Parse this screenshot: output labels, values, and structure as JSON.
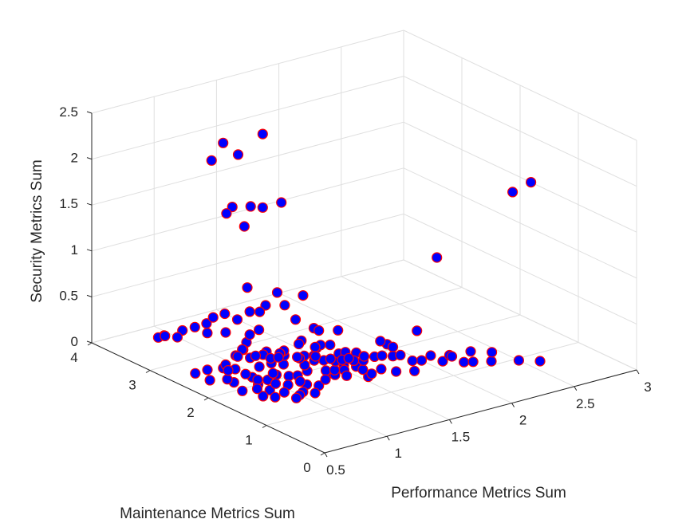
{
  "chart_data": {
    "type": "scatter",
    "xlabel": "Performance Metrics Sum",
    "ylabel": "Maintenance Metrics Sum",
    "zlabel": "Security Metrics Sum",
    "xlim": [
      0.5,
      3
    ],
    "ylim": [
      0,
      4
    ],
    "zlim": [
      0,
      2.5
    ],
    "xticks": [
      "0.5",
      "1",
      "1.5",
      "2",
      "2.5",
      "3"
    ],
    "yticks": [
      "0",
      "1",
      "2",
      "3",
      "4"
    ],
    "zticks": [
      "0",
      "0.5",
      "1",
      "1.5",
      "2",
      "2.5"
    ],
    "marker_fill": "#0000ff",
    "marker_edge": "#ff0000",
    "grid": true,
    "points": [
      [
        1.3,
        3.2,
        2.0
      ],
      [
        1.25,
        3.35,
        2.1
      ],
      [
        1.45,
        3.1,
        2.2
      ],
      [
        0.9,
        2.8,
        2.2
      ],
      [
        1.3,
        3.3,
        1.4
      ],
      [
        1.4,
        3.2,
        1.4
      ],
      [
        1.45,
        3.1,
        1.4
      ],
      [
        1.6,
        3.1,
        1.4
      ],
      [
        1.3,
        3.4,
        1.3
      ],
      [
        1.35,
        3.2,
        1.2
      ],
      [
        2.9,
        1.6,
        1.6
      ],
      [
        2.8,
        1.7,
        1.5
      ],
      [
        1.1,
        2.1,
        0.9
      ],
      [
        1.0,
        2.4,
        0.9
      ],
      [
        2.1,
        1.5,
        1.1
      ],
      [
        1.7,
        1.5,
        0.3
      ],
      [
        1.4,
        2.3,
        0.7
      ],
      [
        1.3,
        2.4,
        0.6
      ],
      [
        1.1,
        2.3,
        0.7
      ],
      [
        1.1,
        2.4,
        0.6
      ],
      [
        1.2,
        2.0,
        0.6
      ],
      [
        1.3,
        1.9,
        0.5
      ],
      [
        1.2,
        1.9,
        0.4
      ],
      [
        1.0,
        2.2,
        0.5
      ],
      [
        0.9,
        2.2,
        0.4
      ],
      [
        1.2,
        1.6,
        0.6
      ],
      [
        1.4,
        1.7,
        0.5
      ],
      [
        1.8,
        1.2,
        0.5
      ],
      [
        1.6,
        1.4,
        0.4
      ],
      [
        1.7,
        1.4,
        0.3
      ],
      [
        1.7,
        1.4,
        0.2
      ],
      [
        1.3,
        1.9,
        0.2
      ],
      [
        1.5,
        1.6,
        0.25
      ],
      [
        1.4,
        1.6,
        0.15
      ],
      [
        1.6,
        1.5,
        0.2
      ],
      [
        1.1,
        3.0,
        0.4
      ],
      [
        1.0,
        3.1,
        0.3
      ],
      [
        1.1,
        3.2,
        0.3
      ],
      [
        1.2,
        3.0,
        0.3
      ],
      [
        1.3,
        3.0,
        0.35
      ],
      [
        1.0,
        3.3,
        0.2
      ],
      [
        1.1,
        3.3,
        0.1
      ],
      [
        0.9,
        3.3,
        0.2
      ],
      [
        0.8,
        3.4,
        0.15
      ],
      [
        1.2,
        3.2,
        0.1
      ],
      [
        0.8,
        3.5,
        0.1
      ],
      [
        0.9,
        3.6,
        0.05
      ],
      [
        1.0,
        3.6,
        0.0
      ],
      [
        1.2,
        2.9,
        0.0
      ],
      [
        1.3,
        3.0,
        0.1
      ],
      [
        1.1,
        2.7,
        0.1
      ],
      [
        1.0,
        2.6,
        0.1
      ],
      [
        1.2,
        2.5,
        0.1
      ],
      [
        0.9,
        2.6,
        0.0
      ],
      [
        0.95,
        2.5,
        0.0
      ],
      [
        1.1,
        2.2,
        0.1
      ],
      [
        1.05,
        2.3,
        0.05
      ],
      [
        1.15,
        2.1,
        0.1
      ],
      [
        1.0,
        2.05,
        0.0
      ],
      [
        0.9,
        2.1,
        0.05
      ],
      [
        0.8,
        2.2,
        0.0
      ],
      [
        0.9,
        2.0,
        0.0
      ],
      [
        1.0,
        1.9,
        0.1
      ],
      [
        1.1,
        1.9,
        0.05
      ],
      [
        1.2,
        1.8,
        0.1
      ],
      [
        1.15,
        1.7,
        0.0
      ],
      [
        1.3,
        1.6,
        0.1
      ],
      [
        1.1,
        1.75,
        0.1
      ],
      [
        0.9,
        1.8,
        0.0
      ],
      [
        1.0,
        1.7,
        0.05
      ],
      [
        1.2,
        1.6,
        0.0
      ],
      [
        1.05,
        1.6,
        0.1
      ],
      [
        0.9,
        1.7,
        0.1
      ],
      [
        0.85,
        1.9,
        0.1
      ],
      [
        0.95,
        1.85,
        0.15
      ],
      [
        1.25,
        1.95,
        0.1
      ],
      [
        1.35,
        1.8,
        0.05
      ],
      [
        1.4,
        1.75,
        0.0
      ],
      [
        1.3,
        1.7,
        0.0
      ],
      [
        1.35,
        1.65,
        0.1
      ],
      [
        1.45,
        1.7,
        0.05
      ],
      [
        1.5,
        1.6,
        0.1
      ],
      [
        1.4,
        1.55,
        0.05
      ],
      [
        1.55,
        1.5,
        0.0
      ],
      [
        1.6,
        1.55,
        0.0
      ],
      [
        1.05,
        1.55,
        0.0
      ],
      [
        1.0,
        1.5,
        0.0
      ],
      [
        0.95,
        1.45,
        0.0
      ],
      [
        1.1,
        1.45,
        0.0
      ],
      [
        0.9,
        1.55,
        0.05
      ],
      [
        0.85,
        1.6,
        0.0
      ],
      [
        0.8,
        1.7,
        0.0
      ],
      [
        0.8,
        1.8,
        0.05
      ],
      [
        0.75,
        1.95,
        0.0
      ],
      [
        0.7,
        2.1,
        0.1
      ],
      [
        0.8,
        2.0,
        0.15
      ],
      [
        1.0,
        2.35,
        0.15
      ],
      [
        1.15,
        2.45,
        0.1
      ],
      [
        1.25,
        2.3,
        0.1
      ],
      [
        1.3,
        2.15,
        0.1
      ],
      [
        1.35,
        2.0,
        0.1
      ],
      [
        1.45,
        1.85,
        0.1
      ],
      [
        1.5,
        1.9,
        0.15
      ],
      [
        1.55,
        1.75,
        0.1
      ],
      [
        1.2,
        2.2,
        0.2
      ],
      [
        1.1,
        2.05,
        0.25
      ],
      [
        1.0,
        2.0,
        0.25
      ],
      [
        0.95,
        2.15,
        0.25
      ],
      [
        1.05,
        1.95,
        0.3
      ],
      [
        1.2,
        1.85,
        0.25
      ],
      [
        1.3,
        1.85,
        0.3
      ],
      [
        1.25,
        2.05,
        0.3
      ],
      [
        1.4,
        2.0,
        0.25
      ],
      [
        1.5,
        2.05,
        0.2
      ],
      [
        1.45,
        2.2,
        0.15
      ],
      [
        1.6,
        2.0,
        0.1
      ],
      [
        1.7,
        1.9,
        0.05
      ],
      [
        1.8,
        1.8,
        0.05
      ],
      [
        1.9,
        1.7,
        0.05
      ],
      [
        2.0,
        1.55,
        0.0
      ],
      [
        2.1,
        1.4,
        0.0
      ],
      [
        2.2,
        1.25,
        0.0
      ],
      [
        2.35,
        1.1,
        0.0
      ],
      [
        2.5,
        0.95,
        0.0
      ],
      [
        2.6,
        0.8,
        0.0
      ],
      [
        2.4,
        1.2,
        0.05
      ],
      [
        2.3,
        1.35,
        0.05
      ],
      [
        2.2,
        1.5,
        0.0
      ],
      [
        2.15,
        1.35,
        0.05
      ],
      [
        2.05,
        1.5,
        0.05
      ],
      [
        1.95,
        1.6,
        0.0
      ],
      [
        2.25,
        1.2,
        0.0
      ],
      [
        1.85,
        1.35,
        0.0
      ],
      [
        1.75,
        1.45,
        0.0
      ],
      [
        1.7,
        1.6,
        0.0
      ],
      [
        1.6,
        1.7,
        0.0
      ],
      [
        1.65,
        1.8,
        0.05
      ],
      [
        1.55,
        1.95,
        0.05
      ],
      [
        1.45,
        2.05,
        0.05
      ],
      [
        1.35,
        2.25,
        0.05
      ],
      [
        1.25,
        2.4,
        0.05
      ],
      [
        1.4,
        2.4,
        0.0
      ],
      [
        1.5,
        2.3,
        0.0
      ],
      [
        1.55,
        2.15,
        0.0
      ],
      [
        1.65,
        2.05,
        0.0
      ],
      [
        1.75,
        2.0,
        0.0
      ],
      [
        0.85,
        2.45,
        0.1
      ],
      [
        0.9,
        2.35,
        0.2
      ],
      [
        0.8,
        2.3,
        0.1
      ],
      [
        0.7,
        2.4,
        0.0
      ],
      [
        0.75,
        2.55,
        0.05
      ],
      [
        0.7,
        2.65,
        0.0
      ]
    ]
  }
}
